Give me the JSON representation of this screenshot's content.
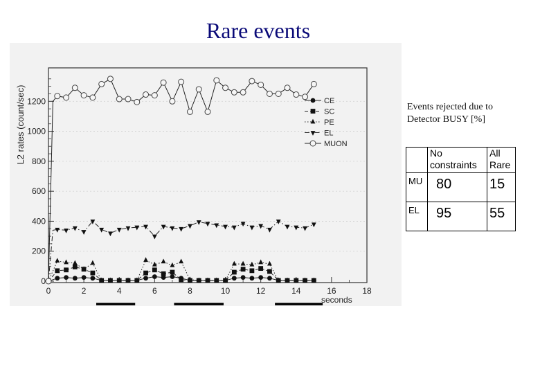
{
  "slide": {
    "title": "Rare events"
  },
  "caption": {
    "line1": "Events rejected due to",
    "line2": "Detector BUSY [%]"
  },
  "table": {
    "headers": [
      "",
      "No constraints",
      "All Rare"
    ],
    "header_lines": [
      [
        "No",
        "constraints"
      ],
      [
        "All",
        "Rare"
      ]
    ],
    "rows": [
      {
        "label": "MU",
        "values": [
          "80",
          "15"
        ]
      },
      {
        "label": "EL",
        "values": [
          "95",
          "55"
        ]
      }
    ]
  },
  "chart_data": {
    "type": "line",
    "ylabel": "L2 rates (count/sec)",
    "xlabel": "seconds",
    "xlim": [
      0,
      18
    ],
    "ylim": [
      0,
      1400
    ],
    "xticks": [
      "0",
      "2",
      "4",
      "6",
      "8",
      "10",
      "12",
      "14",
      "16",
      "18"
    ],
    "yticks": [
      "0",
      "200",
      "400",
      "600",
      "800",
      "1000",
      "1200"
    ],
    "legend_position": "top-right",
    "x": [
      0.5,
      1,
      1.5,
      2,
      2.5,
      3,
      3.5,
      4,
      4.5,
      5,
      5.5,
      6,
      6.5,
      7,
      7.5,
      8,
      8.5,
      9,
      9.5,
      10,
      10.5,
      11,
      11.5,
      12,
      12.5,
      13,
      13.5,
      14,
      14.5,
      15
    ],
    "series": [
      {
        "name": "CE",
        "marker": "circle-filled",
        "values": [
          20,
          25,
          20,
          25,
          20,
          5,
          5,
          5,
          5,
          5,
          20,
          30,
          25,
          30,
          20,
          5,
          5,
          5,
          5,
          5,
          20,
          25,
          20,
          25,
          20,
          5,
          5,
          5,
          5,
          5
        ]
      },
      {
        "name": "SC",
        "marker": "square-filled",
        "values": [
          70,
          75,
          95,
          80,
          55,
          5,
          5,
          5,
          5,
          5,
          55,
          75,
          50,
          60,
          10,
          5,
          5,
          5,
          5,
          5,
          60,
          80,
          70,
          85,
          65,
          5,
          5,
          5,
          5,
          5
        ]
      },
      {
        "name": "PE",
        "marker": "triangle-up-filled",
        "values": [
          135,
          125,
          120,
          80,
          120,
          5,
          5,
          5,
          5,
          5,
          140,
          110,
          130,
          105,
          130,
          10,
          5,
          5,
          5,
          5,
          115,
          115,
          110,
          125,
          115,
          5,
          5,
          5,
          5,
          5
        ]
      },
      {
        "name": "EL",
        "marker": "triangle-down-filled",
        "values": [
          345,
          340,
          355,
          330,
          400,
          345,
          320,
          345,
          355,
          360,
          365,
          300,
          365,
          355,
          350,
          370,
          395,
          385,
          375,
          365,
          360,
          385,
          360,
          370,
          345,
          400,
          365,
          360,
          355,
          380
        ]
      },
      {
        "name": "MUON",
        "marker": "circle-open",
        "values": [
          1235,
          1225,
          1290,
          1240,
          1225,
          1315,
          1350,
          1215,
          1215,
          1195,
          1245,
          1240,
          1325,
          1200,
          1330,
          1130,
          1280,
          1130,
          1340,
          1290,
          1260,
          1260,
          1335,
          1310,
          1250,
          1250,
          1290,
          1245,
          1230,
          1315
        ]
      }
    ],
    "series_styles": [
      {
        "dash": ""
      },
      {
        "dash": "5,3"
      },
      {
        "dash": "1.5,2.5"
      },
      {
        "dash": "7,3,1.5,3"
      },
      {
        "dash": ""
      }
    ],
    "extra_points": {
      "MUON": [
        [
          0,
          0
        ],
        [
          0.25,
          1200
        ]
      ],
      "EL": [
        [
          0,
          0
        ],
        [
          0.25,
          340
        ]
      ]
    },
    "busy_bars": [
      [
        2.7,
        4.9
      ],
      [
        7.1,
        9.9
      ],
      [
        12.8,
        15.5
      ]
    ]
  }
}
